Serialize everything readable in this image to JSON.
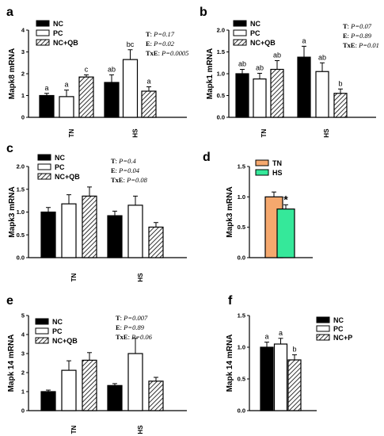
{
  "colors": {
    "NC": "#000000",
    "PC": "#ffffff",
    "NCQB": "hatch",
    "TN": "#f5a86e",
    "HS": "#35e89a"
  },
  "chart_data": [
    {
      "panel": "a",
      "type": "bar",
      "ylabel": "Mapk8 mRNA",
      "ylim": [
        0,
        4
      ],
      "yticks": [
        "0",
        "1",
        "2",
        "3",
        "4"
      ],
      "categories": [
        "TN",
        "HS"
      ],
      "series": [
        {
          "name": "NC",
          "values": [
            1.0,
            1.6
          ],
          "errors": [
            0.1,
            0.35
          ],
          "letters": [
            "a",
            "ab"
          ]
        },
        {
          "name": "PC",
          "values": [
            0.95,
            2.65
          ],
          "errors": [
            0.3,
            0.45
          ],
          "letters": [
            "a",
            "bc"
          ]
        },
        {
          "name": "NC+QB",
          "values": [
            1.85,
            1.2
          ],
          "errors": [
            0.1,
            0.2
          ],
          "letters": [
            "c",
            "a"
          ]
        }
      ],
      "stats": [
        {
          "label": "T",
          "value": "P=0.17"
        },
        {
          "label": "E",
          "value": "P=0.02"
        },
        {
          "label": "TxE",
          "value": "P=0.0005"
        }
      ]
    },
    {
      "panel": "b",
      "type": "bar",
      "ylabel": "Mapk1 mRNA",
      "ylim": [
        0,
        2.0
      ],
      "yticks": [
        "0.0",
        "0.5",
        "1.0",
        "1.5",
        "2.0"
      ],
      "categories": [
        "TN",
        "HS"
      ],
      "series": [
        {
          "name": "NC",
          "values": [
            1.0,
            1.38
          ],
          "errors": [
            0.1,
            0.25
          ],
          "letters": [
            "ab",
            "a"
          ]
        },
        {
          "name": "PC",
          "values": [
            0.88,
            1.05
          ],
          "errors": [
            0.13,
            0.2
          ],
          "letters": [
            "ab",
            "ab"
          ]
        },
        {
          "name": "NC+QB",
          "values": [
            1.1,
            0.55
          ],
          "errors": [
            0.2,
            0.1
          ],
          "letters": [
            "ab",
            "b"
          ]
        }
      ],
      "stats": [
        {
          "label": "T",
          "value": "P=0.07"
        },
        {
          "label": "E",
          "value": "P=0.89"
        },
        {
          "label": "TxE",
          "value": "P=0.01"
        }
      ]
    },
    {
      "panel": "c",
      "type": "bar",
      "ylabel": "Mapk3 mRNA",
      "ylim": [
        0,
        2.0
      ],
      "yticks": [
        "0.0",
        "0.5",
        "1.0",
        "1.5",
        "2.0"
      ],
      "categories": [
        "TN",
        "HS"
      ],
      "series": [
        {
          "name": "NC",
          "values": [
            1.0,
            0.92
          ],
          "errors": [
            0.1,
            0.1
          ],
          "letters": [
            "",
            ""
          ]
        },
        {
          "name": "PC",
          "values": [
            1.18,
            1.15
          ],
          "errors": [
            0.2,
            0.2
          ],
          "letters": [
            "",
            ""
          ]
        },
        {
          "name": "NC+QB",
          "values": [
            1.35,
            0.67
          ],
          "errors": [
            0.2,
            0.1
          ],
          "letters": [
            "",
            ""
          ]
        }
      ],
      "stats": [
        {
          "label": "T",
          "value": "P=0.4"
        },
        {
          "label": "E",
          "value": "P=0.04"
        },
        {
          "label": "TxE",
          "value": "P=0.08"
        }
      ]
    },
    {
      "panel": "d",
      "type": "bar",
      "ylabel": "Mapk3 mRNA",
      "ylim": [
        0,
        1.5
      ],
      "yticks": [
        "0.0",
        "0.5",
        "1.0",
        "1.5"
      ],
      "categories": [
        ""
      ],
      "series": [
        {
          "name": "TN",
          "values": [
            1.0
          ],
          "errors": [
            0.08
          ],
          "letters": [
            ""
          ]
        },
        {
          "name": "HS",
          "values": [
            0.8
          ],
          "errors": [
            0.07
          ],
          "letters": [
            "*"
          ]
        }
      ],
      "stats": []
    },
    {
      "panel": "e",
      "type": "bar",
      "ylabel": "Mapk 14 mRNA",
      "ylim": [
        0,
        5
      ],
      "yticks": [
        "0",
        "1",
        "2",
        "3",
        "4",
        "5"
      ],
      "categories": [
        "TN",
        "HS"
      ],
      "series": [
        {
          "name": "NC",
          "values": [
            1.0,
            1.32
          ],
          "errors": [
            0.08,
            0.1
          ],
          "letters": [
            "",
            ""
          ]
        },
        {
          "name": "PC",
          "values": [
            2.12,
            3.0
          ],
          "errors": [
            0.5,
            0.8
          ],
          "letters": [
            "",
            ""
          ]
        },
        {
          "name": "NC+QB",
          "values": [
            2.65,
            1.55
          ],
          "errors": [
            0.4,
            0.2
          ],
          "letters": [
            "",
            ""
          ]
        }
      ],
      "stats": [
        {
          "label": "T",
          "value": "P=0.007"
        },
        {
          "label": "E",
          "value": "P=0.89"
        },
        {
          "label": "TxE",
          "value": "P=0.06"
        }
      ]
    },
    {
      "panel": "f",
      "type": "bar",
      "ylabel": "Mapk 14 mRNA",
      "ylim": [
        0,
        1.5
      ],
      "yticks": [
        "0.0",
        "0.5",
        "1.0",
        "1.5"
      ],
      "categories": [
        ""
      ],
      "series": [
        {
          "name": "NC",
          "values": [
            1.0
          ],
          "errors": [
            0.08
          ],
          "letters": [
            "a"
          ]
        },
        {
          "name": "PC",
          "values": [
            1.05
          ],
          "errors": [
            0.09
          ],
          "letters": [
            "a"
          ]
        },
        {
          "name": "NC+P",
          "values": [
            0.8
          ],
          "errors": [
            0.08
          ],
          "letters": [
            "b"
          ]
        }
      ],
      "stats": []
    }
  ]
}
